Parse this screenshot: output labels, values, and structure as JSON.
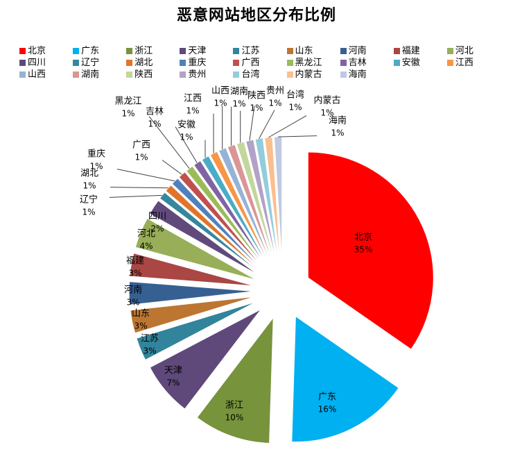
{
  "chart_data": {
    "type": "pie",
    "title": "恶意网站地区分布比例",
    "legend_position": "top",
    "value_unit": "%",
    "exploded": true,
    "start_angle_deg": 0,
    "direction": "clockwise",
    "categories": [
      "北京",
      "广东",
      "浙江",
      "天津",
      "江苏",
      "山东",
      "河南",
      "福建",
      "河北",
      "四川",
      "辽宁",
      "湖北",
      "重庆",
      "广西",
      "黑龙江",
      "吉林",
      "安徽",
      "江西",
      "山西",
      "湖南",
      "陕西",
      "贵州",
      "台湾",
      "内蒙古",
      "海南"
    ],
    "values": [
      35,
      16,
      10,
      7,
      3,
      3,
      3,
      3,
      4,
      2,
      1,
      1,
      1,
      1,
      1,
      1,
      1,
      1,
      1,
      1,
      1,
      1,
      1,
      1,
      1
    ],
    "colors": [
      "#FF0000",
      "#00B0F0",
      "#77933C",
      "#5F497A",
      "#31849B",
      "#BC7632",
      "#376092",
      "#AA4643",
      "#98AE58",
      "#604A7B",
      "#35879E",
      "#E0752A",
      "#4F81BD",
      "#C0504D",
      "#9BBB59",
      "#8064A2",
      "#4BACC6",
      "#F79646",
      "#95B3D7",
      "#D99694",
      "#C3D69B",
      "#B2A2C7",
      "#92CDDC",
      "#FABF8F",
      "#BFC9E2"
    ],
    "leader_line_color": "#404040",
    "background_color": "#FFFFFF",
    "text_color": "#000000"
  }
}
